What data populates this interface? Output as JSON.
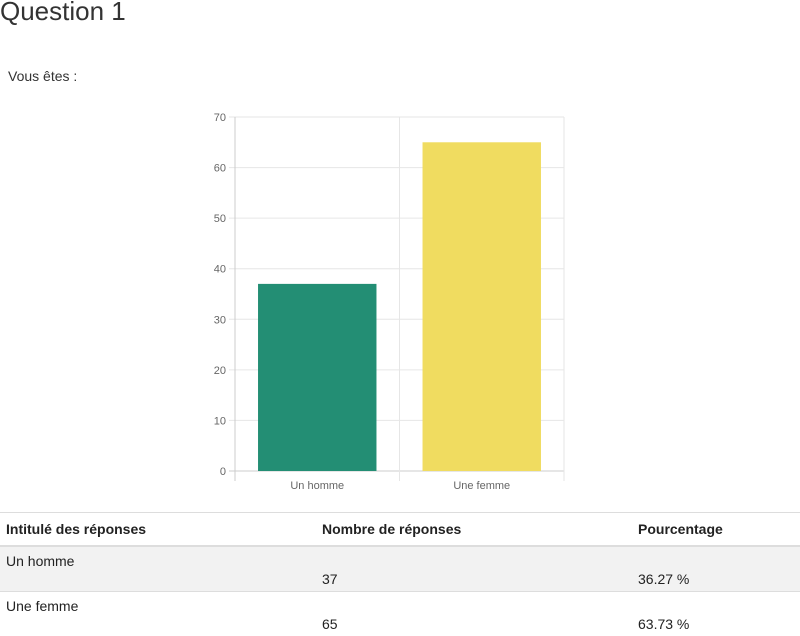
{
  "page": {
    "title": "Question 1",
    "question": "Vous êtes :"
  },
  "colors": {
    "bar_homme": "#238e74",
    "bar_femme": "#f0dc60",
    "grid": "#e6e6e6",
    "axis": "#cccccc"
  },
  "chart_data": {
    "type": "bar",
    "categories": [
      "Un homme",
      "Une femme"
    ],
    "values": [
      37,
      65
    ],
    "ylim": [
      0,
      70
    ],
    "yticks": [
      0,
      10,
      20,
      30,
      40,
      50,
      60,
      70
    ],
    "title": "",
    "xlabel": "",
    "ylabel": "",
    "grid": true
  },
  "table": {
    "headers": [
      "Intitulé des réponses",
      "Nombre de réponses",
      "Pourcentage"
    ],
    "rows": [
      [
        "Un homme",
        "37",
        "36.27 %"
      ],
      [
        "Une femme",
        "65",
        "63.73 %"
      ]
    ]
  }
}
